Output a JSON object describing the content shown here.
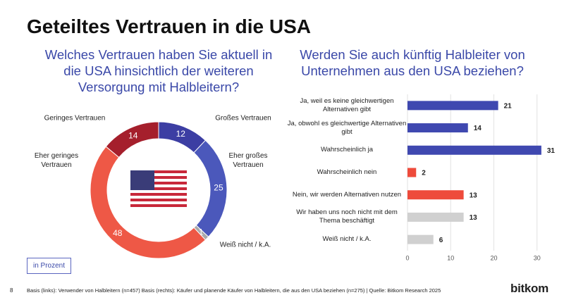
{
  "title": "Geteiltes Vertrauen in die USA",
  "chart_data": [
    {
      "type": "donut",
      "title": "Welches Vertrauen haben Sie aktuell in die USA hinsichtlich der weiteren Versorgung mit Halbleitern?",
      "categories": [
        "Großes Vertrauen",
        "Eher großes Vertrauen",
        "Weiß nicht / k.A.",
        "Eher geringes Vertrauen",
        "Geringes Vertrauen"
      ],
      "values": [
        12,
        25,
        1,
        48,
        14
      ],
      "colors": [
        "#3c3ea3",
        "#4b58bb",
        "#a9a9a9",
        "#ee5846",
        "#a51f2c"
      ]
    },
    {
      "type": "hbar",
      "title": "Werden Sie auch künftig Halbleiter von Unternehmen aus den USA beziehen?",
      "categories": [
        "Ja, weil es keine gleichwertigen Alternativen gibt",
        "Ja, obwohl es gleichwertige Alternativen gibt",
        "Wahrscheinlich ja",
        "Wahrscheinlich nein",
        "Nein, wir werden Alternativen nutzen",
        "Wir haben uns noch  nicht mit dem Thema beschäftigt",
        "Weiß nicht / k.A."
      ],
      "values": [
        21,
        14,
        31,
        2,
        13,
        13,
        6
      ],
      "colors": [
        "#3f48b0",
        "#3f48b0",
        "#3f48b0",
        "#ee4b3b",
        "#ee4b3b",
        "#d0d0d0",
        "#d0d0d0"
      ],
      "xlim": [
        0,
        32
      ],
      "xticks": [
        0,
        10,
        20,
        30
      ],
      "grid": true
    }
  ],
  "unit_note": "in Prozent",
  "page_number": "8",
  "footnote": "Basis (links): Verwender von Halbleitern (n=457) Basis (rechts): Käufer und planende Käufer von Halbleitern, die aus den USA beziehen (n=275) | Quelle: Bitkom Research 2025",
  "brand": "bitkom"
}
